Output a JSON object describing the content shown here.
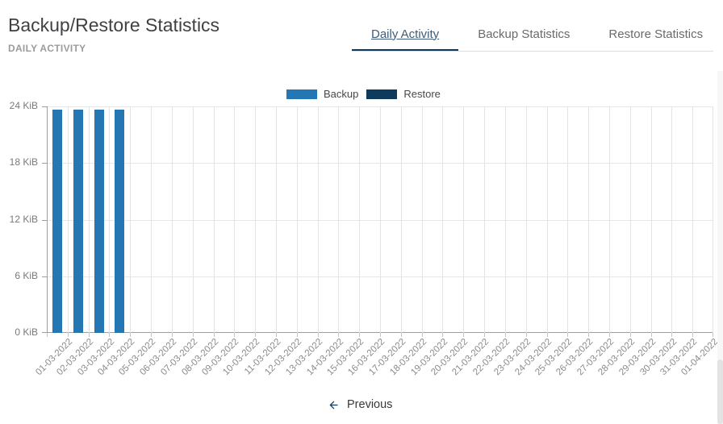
{
  "header": {
    "title": "Backup/Restore Statistics",
    "subtitle": "DAILY ACTIVITY"
  },
  "tabs": [
    {
      "label": "Daily Activity",
      "active": true
    },
    {
      "label": "Backup Statistics",
      "active": false
    },
    {
      "label": "Restore Statistics",
      "active": false
    }
  ],
  "legend": [
    {
      "label": "Backup",
      "color": "#2577b4"
    },
    {
      "label": "Restore",
      "color": "#0e3a5c"
    }
  ],
  "colors": {
    "accent_navy": "#0d3a5c",
    "bar_blue": "#2577b4",
    "grid_light": "#e4e4e4",
    "axis_gray": "#9e9e9e"
  },
  "chart_data": {
    "type": "bar",
    "title": "",
    "xlabel": "",
    "ylabel": "",
    "ylim": [
      0,
      24
    ],
    "grid": true,
    "legend_position": "top",
    "y_ticks": [
      "24 KiB",
      "18 KiB",
      "12 KiB",
      "6 KiB",
      "0 KiB"
    ],
    "y_tick_values": [
      24,
      18,
      12,
      6,
      0
    ],
    "categories": [
      "01-03-2022",
      "02-03-2022",
      "03-03-2022",
      "04-03-2022",
      "05-03-2022",
      "06-03-2022",
      "07-03-2022",
      "08-03-2022",
      "09-03-2022",
      "10-03-2022",
      "11-03-2022",
      "12-03-2022",
      "13-03-2022",
      "14-03-2022",
      "15-03-2022",
      "16-03-2022",
      "17-03-2022",
      "18-03-2022",
      "19-03-2022",
      "20-03-2022",
      "21-03-2022",
      "22-03-2022",
      "23-03-2022",
      "24-03-2022",
      "25-03-2022",
      "26-03-2022",
      "27-03-2022",
      "28-03-2022",
      "29-03-2022",
      "30-03-2022",
      "31-03-2022",
      "01-04-2022"
    ],
    "series": [
      {
        "name": "Backup",
        "color": "#2577b4",
        "values": [
          23.7,
          23.7,
          23.7,
          23.7,
          0,
          0,
          0,
          0,
          0,
          0,
          0,
          0,
          0,
          0,
          0,
          0,
          0,
          0,
          0,
          0,
          0,
          0,
          0,
          0,
          0,
          0,
          0,
          0,
          0,
          0,
          0,
          0
        ]
      },
      {
        "name": "Restore",
        "color": "#0e3a5c",
        "values": [
          0,
          0,
          0,
          0,
          0,
          0,
          0,
          0,
          0,
          0,
          0,
          0,
          0,
          0,
          0,
          0,
          0,
          0,
          0,
          0,
          0,
          0,
          0,
          0,
          0,
          0,
          0,
          0,
          0,
          0,
          0,
          0
        ]
      }
    ]
  },
  "footer": {
    "previous_label": "Previous"
  }
}
